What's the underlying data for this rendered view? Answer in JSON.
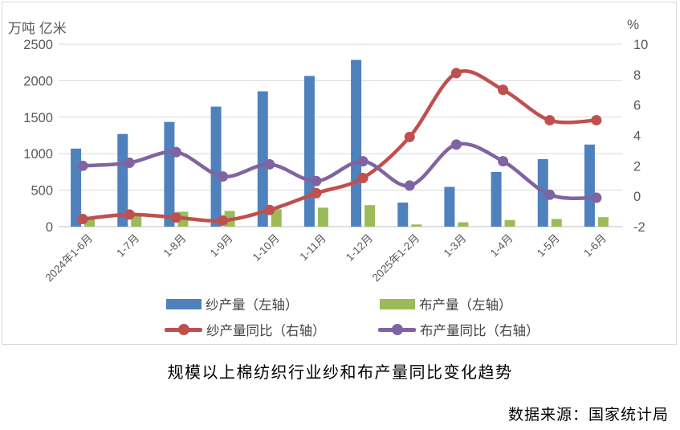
{
  "title": "规模以上棉纺织行业纱和布产量同比变化趋势",
  "source": "数据来源：国家统计局",
  "chart_data": {
    "type": "bar",
    "combo": "dual-axis bar + smoothed line",
    "grid": true,
    "legend_position": "bottom",
    "categories": [
      "2024年1-6月",
      "1-7月",
      "1-8月",
      "1-9月",
      "1-10月",
      "1-11月",
      "1-12月",
      "2025年1-2月",
      "1-3月",
      "1-4月",
      "1-5月",
      "1-6月"
    ],
    "left_axis": {
      "label": "万吨 亿米",
      "min": 0,
      "max": 2500,
      "ticks": [
        0,
        500,
        1000,
        1500,
        2000,
        2500
      ]
    },
    "right_axis": {
      "label": "%",
      "min": -2,
      "max": 10,
      "ticks": [
        -2,
        0,
        2,
        4,
        6,
        8,
        10
      ]
    },
    "series": [
      {
        "name": "纱产量（左轴）",
        "kind": "bar",
        "axis": "left",
        "color": "#4f81bd",
        "values": [
          1070,
          1270,
          1435,
          1645,
          1855,
          2065,
          2285,
          330,
          545,
          750,
          925,
          1125
        ]
      },
      {
        "name": "布产量（左轴）",
        "kind": "bar",
        "axis": "left",
        "color": "#9bbb59",
        "values": [
          125,
          180,
          205,
          215,
          240,
          260,
          295,
          30,
          60,
          90,
          105,
          130
        ]
      },
      {
        "name": "纱产量同比（右轴）",
        "kind": "line",
        "axis": "right",
        "color": "#c0504d",
        "values": [
          -1.5,
          -1.2,
          -1.4,
          -1.6,
          -0.9,
          0.2,
          1.2,
          3.9,
          8.1,
          7.0,
          5.0,
          5.0
        ]
      },
      {
        "name": "布产量同比（右轴）",
        "kind": "line",
        "axis": "right",
        "color": "#8064a2",
        "values": [
          2.0,
          2.2,
          2.9,
          1.3,
          2.1,
          1.0,
          2.3,
          0.7,
          3.4,
          2.3,
          0.1,
          -0.1
        ]
      }
    ],
    "colors": {
      "gridline": "#d9d9d9",
      "axis_line": "#bfbfbf",
      "tick_text": "#595959"
    }
  }
}
